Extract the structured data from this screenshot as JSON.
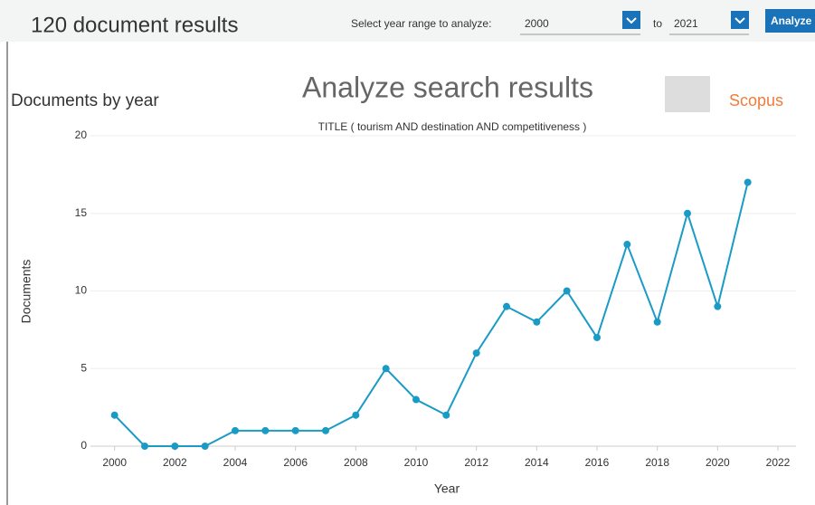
{
  "header": {
    "results": "120 document results",
    "range_label": "Select year range to analyze:",
    "from_year": "2000",
    "to_label": "to",
    "to_year": "2021",
    "button": "Analyze"
  },
  "chart_data": {
    "type": "line",
    "heading": "Documents by year",
    "title": "Analyze search results",
    "subtitle": "TITLE ( tourism  AND destination  AND competitiveness )",
    "brand": "Scopus",
    "x_label": "Year",
    "y_label": "Documents",
    "x": [
      2000,
      2001,
      2002,
      2003,
      2004,
      2005,
      2006,
      2007,
      2008,
      2009,
      2010,
      2011,
      2012,
      2013,
      2014,
      2015,
      2016,
      2017,
      2018,
      2019,
      2020,
      2021
    ],
    "series": [
      {
        "name": "Documents",
        "color": "#1a9bc6",
        "values": [
          2,
          0,
          0,
          0,
          1,
          1,
          1,
          1,
          2,
          5,
          3,
          2,
          6,
          9,
          8,
          10,
          7,
          13,
          8,
          15,
          9,
          17
        ]
      }
    ],
    "xlim": [
      1999.2,
      2022.6
    ],
    "xticks": [
      2000,
      2002,
      2004,
      2006,
      2008,
      2010,
      2012,
      2014,
      2016,
      2018,
      2020,
      2022
    ],
    "ylim": [
      0,
      20
    ],
    "yticks": [
      0,
      5,
      10,
      15,
      20
    ],
    "grid": true
  }
}
